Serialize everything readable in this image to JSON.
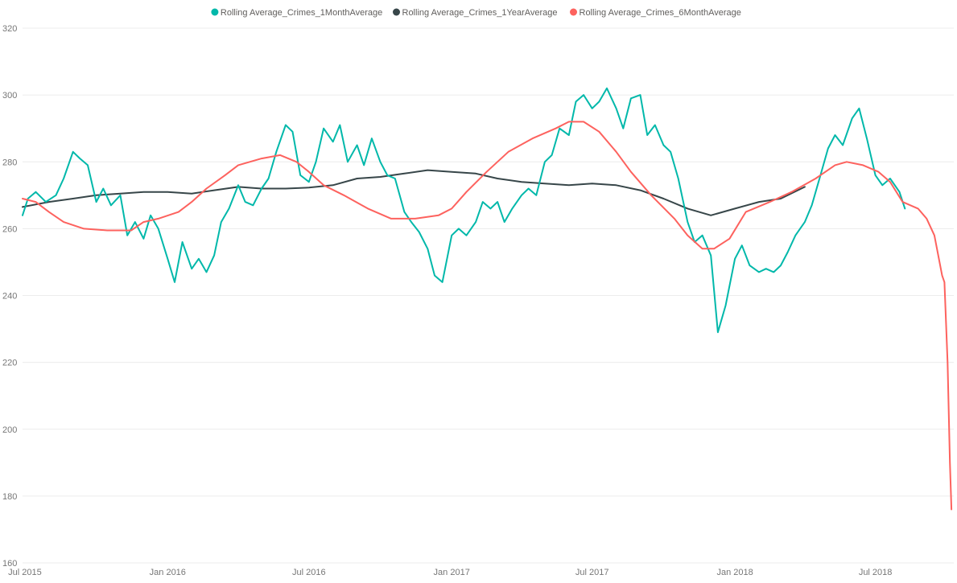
{
  "chart_data": {
    "type": "line",
    "title": "",
    "xlabel": "",
    "ylabel": "",
    "ylim": [
      160,
      320
    ],
    "xlim": [
      "2015-06-28",
      "2018-10-10"
    ],
    "grid": true,
    "legend_position": "top-center",
    "y_ticks": [
      160,
      180,
      200,
      220,
      240,
      260,
      280,
      300,
      320
    ],
    "x_ticks": [
      {
        "date": "2015-07-01",
        "label": "Jul 2015"
      },
      {
        "date": "2016-01-01",
        "label": "Jan 2016"
      },
      {
        "date": "2016-07-01",
        "label": "Jul 2016"
      },
      {
        "date": "2017-01-01",
        "label": "Jan 2017"
      },
      {
        "date": "2017-07-01",
        "label": "Jul 2017"
      },
      {
        "date": "2018-01-01",
        "label": "Jan 2018"
      },
      {
        "date": "2018-07-01",
        "label": "Jul 2018"
      }
    ],
    "series": [
      {
        "name": "Rolling Average_Crimes_1MonthAverage",
        "color": "#01b8aa",
        "x": [
          "2015-06-28",
          "2015-07-05",
          "2015-07-15",
          "2015-07-28",
          "2015-08-10",
          "2015-08-20",
          "2015-09-01",
          "2015-09-10",
          "2015-09-20",
          "2015-10-01",
          "2015-10-10",
          "2015-10-20",
          "2015-11-01",
          "2015-11-10",
          "2015-11-20",
          "2015-12-01",
          "2015-12-10",
          "2015-12-20",
          "2016-01-01",
          "2016-01-10",
          "2016-01-20",
          "2016-02-01",
          "2016-02-10",
          "2016-02-20",
          "2016-03-01",
          "2016-03-10",
          "2016-03-20",
          "2016-04-01",
          "2016-04-10",
          "2016-04-20",
          "2016-05-01",
          "2016-05-10",
          "2016-05-20",
          "2016-06-01",
          "2016-06-10",
          "2016-06-20",
          "2016-07-01",
          "2016-07-10",
          "2016-07-20",
          "2016-08-01",
          "2016-08-10",
          "2016-08-20",
          "2016-09-01",
          "2016-09-10",
          "2016-09-20",
          "2016-10-01",
          "2016-10-10",
          "2016-10-20",
          "2016-11-01",
          "2016-11-10",
          "2016-11-20",
          "2016-12-01",
          "2016-12-10",
          "2016-12-20",
          "2017-01-01",
          "2017-01-10",
          "2017-01-20",
          "2017-02-01",
          "2017-02-10",
          "2017-02-20",
          "2017-03-01",
          "2017-03-10",
          "2017-03-20",
          "2017-04-01",
          "2017-04-10",
          "2017-04-20",
          "2017-05-01",
          "2017-05-10",
          "2017-05-20",
          "2017-06-01",
          "2017-06-10",
          "2017-06-20",
          "2017-07-01",
          "2017-07-10",
          "2017-07-20",
          "2017-08-01",
          "2017-08-10",
          "2017-08-20",
          "2017-09-01",
          "2017-09-10",
          "2017-09-20",
          "2017-10-01",
          "2017-10-10",
          "2017-10-20",
          "2017-11-01",
          "2017-11-10",
          "2017-11-20",
          "2017-12-01",
          "2017-12-10",
          "2017-12-20",
          "2018-01-01",
          "2018-01-10",
          "2018-01-20",
          "2018-02-01",
          "2018-02-10",
          "2018-02-20",
          "2018-03-01",
          "2018-03-10",
          "2018-03-20",
          "2018-04-01",
          "2018-04-10",
          "2018-04-20",
          "2018-05-01",
          "2018-05-10",
          "2018-05-20",
          "2018-06-01",
          "2018-06-10",
          "2018-06-20",
          "2018-07-01",
          "2018-07-10",
          "2018-07-20",
          "2018-08-01",
          "2018-08-08"
        ],
        "values": [
          264,
          269,
          271,
          268,
          270,
          275,
          283,
          281,
          279,
          268,
          272,
          267,
          270,
          258,
          262,
          257,
          264,
          260,
          251,
          244,
          256,
          248,
          251,
          247,
          252,
          262,
          266,
          273,
          268,
          267,
          272,
          275,
          283,
          291,
          289,
          276,
          274,
          280,
          290,
          286,
          291,
          280,
          285,
          279,
          287,
          280,
          276,
          275,
          265,
          262,
          259,
          254,
          246,
          244,
          258,
          260,
          258,
          262,
          268,
          266,
          268,
          262,
          266,
          270,
          272,
          270,
          280,
          282,
          290,
          288,
          298,
          300,
          296,
          298,
          302,
          296,
          290,
          299,
          300,
          288,
          291,
          285,
          283,
          275,
          262,
          256,
          258,
          252,
          229,
          237,
          251,
          255,
          249,
          247,
          248,
          247,
          249,
          253,
          258,
          262,
          267,
          275,
          284,
          288,
          285,
          293,
          296,
          287,
          276,
          273,
          275,
          271,
          266
        ]
      },
      {
        "name": "Rolling Average_Crimes_1YearAverage",
        "color": "#374649",
        "x": [
          "2015-06-28",
          "2015-08-01",
          "2015-09-01",
          "2015-10-01",
          "2015-11-01",
          "2015-12-01",
          "2016-01-01",
          "2016-02-01",
          "2016-03-01",
          "2016-04-01",
          "2016-05-01",
          "2016-06-01",
          "2016-07-01",
          "2016-08-01",
          "2016-09-01",
          "2016-10-01",
          "2016-11-01",
          "2016-12-01",
          "2017-01-01",
          "2017-02-01",
          "2017-03-01",
          "2017-04-01",
          "2017-05-01",
          "2017-06-01",
          "2017-07-01",
          "2017-08-01",
          "2017-09-01",
          "2017-10-01",
          "2017-11-01",
          "2017-12-01",
          "2018-01-01",
          "2018-02-01",
          "2018-03-01",
          "2018-04-01"
        ],
        "values": [
          266.5,
          268,
          269,
          270,
          270.5,
          271,
          271,
          270.5,
          271.5,
          272.5,
          272,
          272,
          272.3,
          273,
          275,
          275.5,
          276.5,
          277.5,
          277,
          276.5,
          275,
          274,
          273.5,
          273,
          273.5,
          273,
          271.5,
          269,
          266,
          264,
          266,
          268,
          269,
          272.5
        ]
      },
      {
        "name": "Rolling Average_Crimes_6MonthAverage",
        "color": "#fd625e",
        "x": [
          "2015-06-28",
          "2015-07-15",
          "2015-08-01",
          "2015-08-20",
          "2015-09-15",
          "2015-10-15",
          "2015-11-15",
          "2015-12-01",
          "2015-12-20",
          "2016-01-15",
          "2016-02-01",
          "2016-02-20",
          "2016-03-15",
          "2016-04-01",
          "2016-05-01",
          "2016-05-25",
          "2016-06-15",
          "2016-07-01",
          "2016-07-20",
          "2016-08-15",
          "2016-09-15",
          "2016-10-15",
          "2016-11-15",
          "2016-12-15",
          "2017-01-01",
          "2017-01-20",
          "2017-02-15",
          "2017-03-15",
          "2017-04-15",
          "2017-05-15",
          "2017-06-01",
          "2017-06-20",
          "2017-07-10",
          "2017-08-01",
          "2017-08-20",
          "2017-09-15",
          "2017-10-15",
          "2017-11-01",
          "2017-11-20",
          "2017-12-05",
          "2017-12-25",
          "2018-01-15",
          "2018-02-15",
          "2018-03-15",
          "2018-04-15",
          "2018-05-10",
          "2018-05-25",
          "2018-06-15",
          "2018-07-05",
          "2018-07-20",
          "2018-08-05",
          "2018-08-25",
          "2018-09-05",
          "2018-09-15",
          "2018-09-20",
          "2018-09-25",
          "2018-09-28",
          "2018-10-02",
          "2018-10-05",
          "2018-10-07"
        ],
        "values": [
          269,
          268,
          265,
          262,
          260,
          259.5,
          259.5,
          262,
          263,
          265,
          268,
          272,
          276,
          279,
          281,
          282,
          280,
          277,
          273,
          270,
          266,
          263,
          263,
          264,
          266,
          271,
          277,
          283,
          287,
          290,
          292,
          292,
          289,
          283,
          277,
          270,
          263,
          258,
          254,
          254,
          257,
          265,
          268,
          271,
          275,
          279,
          280,
          279,
          277,
          274,
          268,
          266,
          263,
          258,
          252,
          246,
          244,
          220,
          190,
          176
        ]
      }
    ]
  }
}
